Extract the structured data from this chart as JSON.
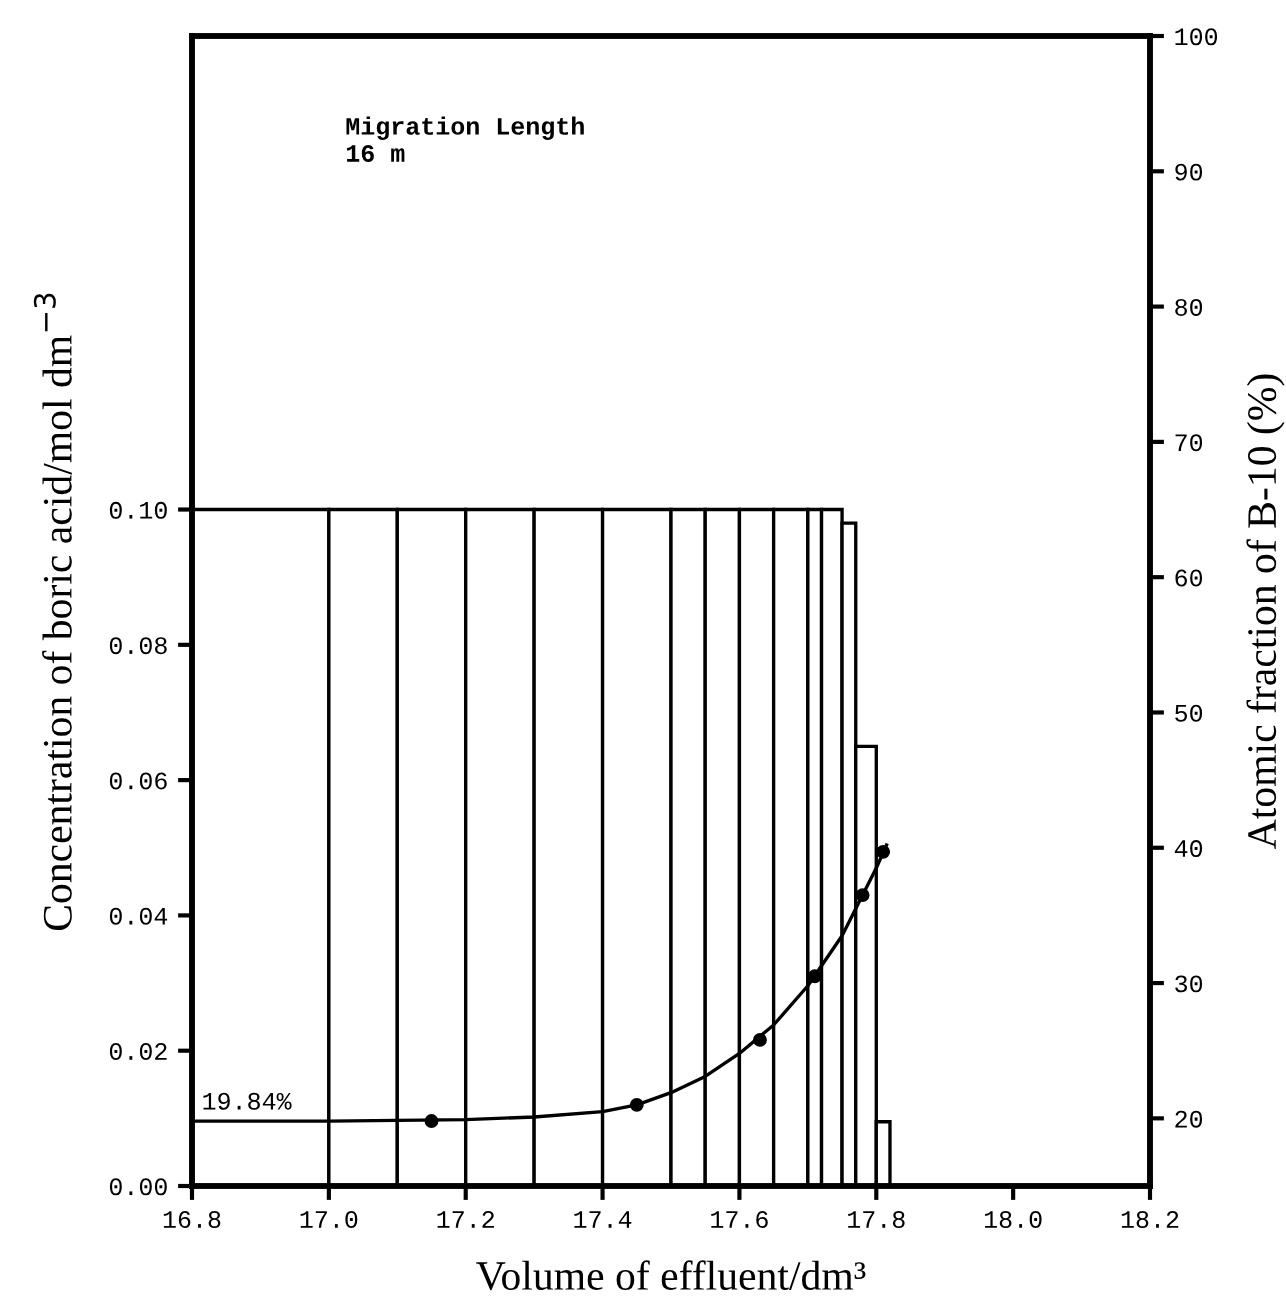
{
  "chart_data": {
    "type": "histogram",
    "xlabel": "Volume of effluent/dm³",
    "ylabel": "Concentration of boric acid/mol dm$^{−3}$",
    "y2label": "Atomic fraction of B-10 (%)",
    "annotations": [
      "Migration Length\n16 m",
      "19.84%"
    ],
    "xlim": [
      16.8,
      18.2
    ],
    "xticks": [
      {
        "value": 16.8,
        "label": "16.8"
      },
      {
        "value": 17.0,
        "label": "17.0"
      },
      {
        "value": 17.2,
        "label": "17.2"
      },
      {
        "value": 17.4,
        "label": "17.4"
      },
      {
        "value": 17.6,
        "label": "17.6"
      },
      {
        "value": 17.8,
        "label": "17.8"
      },
      {
        "value": 18.0,
        "label": "18.0"
      },
      {
        "value": 18.2,
        "label": "18.2"
      }
    ],
    "ylim": [
      0,
      0.17
    ],
    "yticks": [
      {
        "value": 0,
        "label": "0.00"
      },
      {
        "value": 0.02,
        "label": "0.02"
      },
      {
        "value": 0.04,
        "label": "0.04"
      },
      {
        "value": 0.06,
        "label": "0.06"
      },
      {
        "value": 0.08,
        "label": "0.08"
      },
      {
        "value": 0.1,
        "label": "0.10"
      }
    ],
    "y2lim": [
      15,
      100
    ],
    "y2ticks": [
      20,
      30,
      40,
      50,
      60,
      70,
      80,
      90,
      100
    ],
    "series": [
      {
        "color": "#000000",
        "bins": [
          16.8,
          17.0,
          17.1,
          17.2,
          17.3,
          17.4,
          17.5,
          17.55,
          17.6,
          17.65,
          17.7,
          17.72,
          17.75,
          17.77,
          17.8,
          17.82
        ],
        "values": [
          0.1,
          0.1,
          0.1,
          0.1,
          0.1,
          0.1,
          0.1,
          0.1,
          0.1,
          0.1,
          0.1,
          0.1,
          0.098,
          0.065,
          0.0095
        ]
      },
      {
        "type": "line",
        "axis": "y2",
        "color": "#000000",
        "line_style": "solid",
        "x": [
          16.8,
          17.0,
          17.2,
          17.3,
          17.4,
          17.45,
          17.5,
          17.55,
          17.6,
          17.65,
          17.7,
          17.75,
          17.8,
          17.815
        ],
        "values": [
          19.8,
          19.8,
          19.9,
          20.1,
          20.5,
          21.0,
          21.9,
          23.1,
          24.8,
          26.9,
          29.8,
          33.5,
          38.5,
          40.2
        ]
      },
      {
        "type": "scatter",
        "axis": "y2",
        "color": "#000000",
        "marker": "circle",
        "x": [
          17.15,
          17.45,
          17.63,
          17.71,
          17.78,
          17.81
        ],
        "values": [
          19.8,
          21.0,
          25.8,
          30.5,
          36.5,
          39.7
        ]
      }
    ]
  }
}
